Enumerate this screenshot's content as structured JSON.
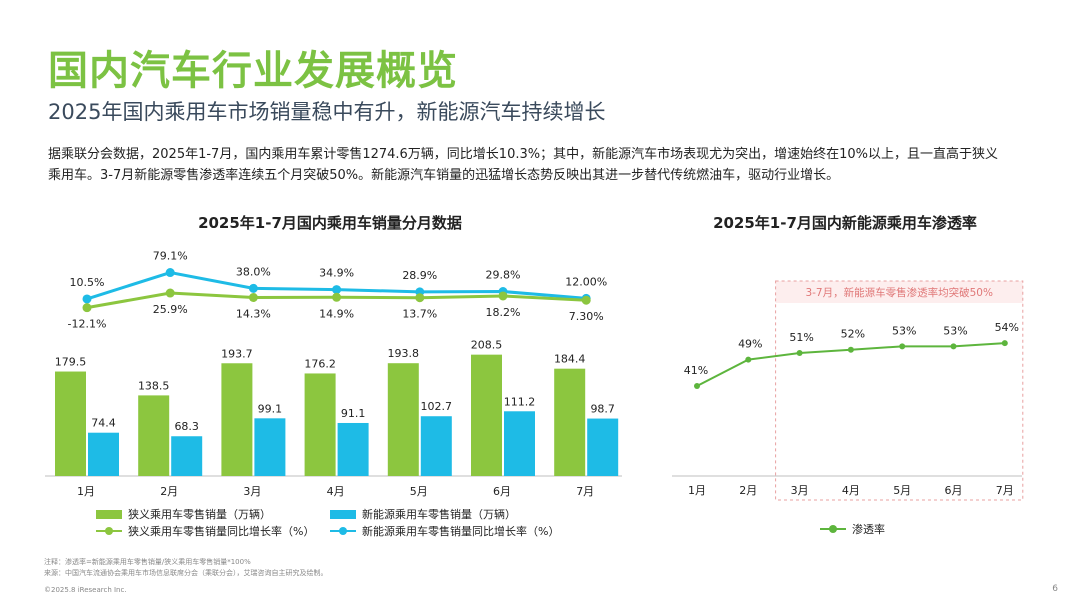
{
  "header": {
    "title": "国内汽车行业发展概览",
    "subtitle": "2025年国内乘用车市场销量稳中有升，新能源汽车持续增长",
    "intro_line1": "据乘联分会数据，2025年1-7月，国内乘用车累计零售1274.6万辆，同比增长10.3%；其中，新能源汽车市场表现尤为突出，增速始终在10%以上，且一直高于狭义",
    "intro_line2": "乘用车。3-7月新能源零售渗透率连续五个月突破50%。新能源汽车销量的迅猛增长态势反映出其进一步替代传统燃油车，驱动行业增长。"
  },
  "colors": {
    "green": "#8cc63f",
    "cyan": "#1ebbe6",
    "pen_line": "#5db53d",
    "title_green": "#7cc243",
    "highlight_fill": "#fdeeee",
    "highlight_border": "#e8a0a0",
    "highlight_text": "#e07878"
  },
  "chart_data": [
    {
      "type": "bar",
      "title": "2025年1-7月国内乘用车销量分月数据",
      "categories": [
        "1月",
        "2月",
        "3月",
        "4月",
        "5月",
        "6月",
        "7月"
      ],
      "series": [
        {
          "name": "狭义乘用车零售销量（万辆）",
          "kind": "bar",
          "values": [
            179.5,
            138.5,
            193.7,
            176.2,
            193.8,
            208.5,
            184.4
          ],
          "labels": [
            "179.5",
            "138.5",
            "193.7",
            "176.2",
            "193.8",
            "208.5",
            "184.4"
          ]
        },
        {
          "name": "新能源乘用车零售销量（万辆）",
          "kind": "bar",
          "values": [
            74.4,
            68.3,
            99.1,
            91.1,
            102.7,
            111.2,
            98.7
          ],
          "labels": [
            "74.4",
            "68.3",
            "99.1",
            "91.1",
            "102.7",
            "111.2",
            "98.7"
          ]
        },
        {
          "name": "狭义乘用车零售销量同比增长率（%）",
          "kind": "line",
          "values": [
            -12.1,
            25.9,
            14.3,
            14.9,
            13.7,
            18.2,
            7.3
          ],
          "labels": [
            "-12.1%",
            "25.9%",
            "14.3%",
            "14.9%",
            "13.7%",
            "18.2%",
            "7.30%"
          ]
        },
        {
          "name": "新能源乘用车零售销量同比增长率（%）",
          "kind": "line",
          "values": [
            10.5,
            79.1,
            38.0,
            34.9,
            28.9,
            29.8,
            12.0
          ],
          "labels": [
            "10.5%",
            "79.1%",
            "38.0%",
            "34.9%",
            "28.9%",
            "29.8%",
            "12.00%"
          ]
        }
      ],
      "ylim": [
        0,
        230
      ]
    },
    {
      "type": "line",
      "title": "2025年1-7月国内新能源乘用车渗透率",
      "categories": [
        "1月",
        "2月",
        "3月",
        "4月",
        "5月",
        "6月",
        "7月"
      ],
      "series": [
        {
          "name": "渗透率",
          "values": [
            41,
            49,
            51,
            52,
            53,
            53,
            54
          ],
          "labels": [
            "41%",
            "49%",
            "51%",
            "52%",
            "53%",
            "53%",
            "54%"
          ]
        }
      ],
      "annotation": "3-7月，新能源车零售渗透率均突破50%",
      "highlight_range": [
        "3月",
        "7月"
      ]
    }
  ],
  "footer": {
    "note1": "注释：渗透率=新能源乘用车零售销量/狭义乘用车零售销量*100%",
    "note2": "来源：中国汽车流通协会乘用车市场信息联席分会（乘联分会），艾瑞咨询自主研究及绘制。",
    "copyright": "©2025.8 iResearch Inc.",
    "page": "6"
  }
}
